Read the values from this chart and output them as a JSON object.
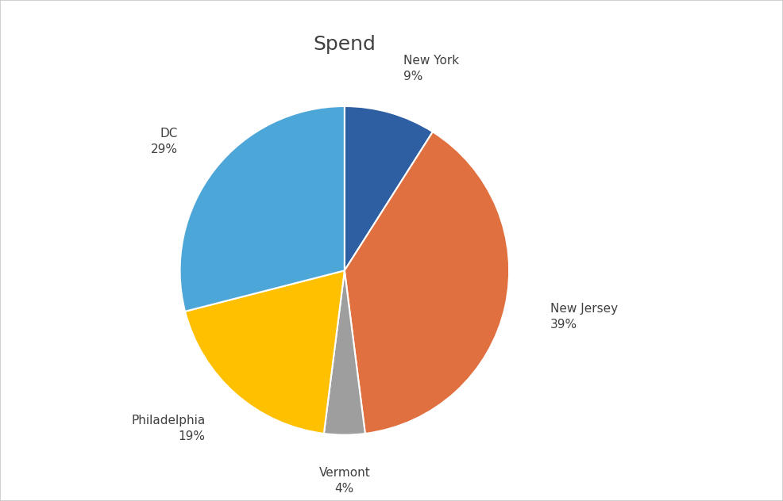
{
  "title": "Spend",
  "labels": [
    "New York",
    "New Jersey",
    "Vermont",
    "Philadelphia",
    "DC"
  ],
  "values": [
    9,
    39,
    4,
    19,
    29
  ],
  "colors": [
    "#2E5FA3",
    "#E07040",
    "#9E9E9E",
    "#FFC000",
    "#4DA6D8"
  ],
  "percentages": [
    "9%",
    "39%",
    "4%",
    "19%",
    "29%"
  ],
  "title_fontsize": 18,
  "label_fontsize": 11,
  "background_color": "#FFFFFF",
  "border_color": "#C8C8C8",
  "startangle": 90,
  "text_color": "#404040"
}
